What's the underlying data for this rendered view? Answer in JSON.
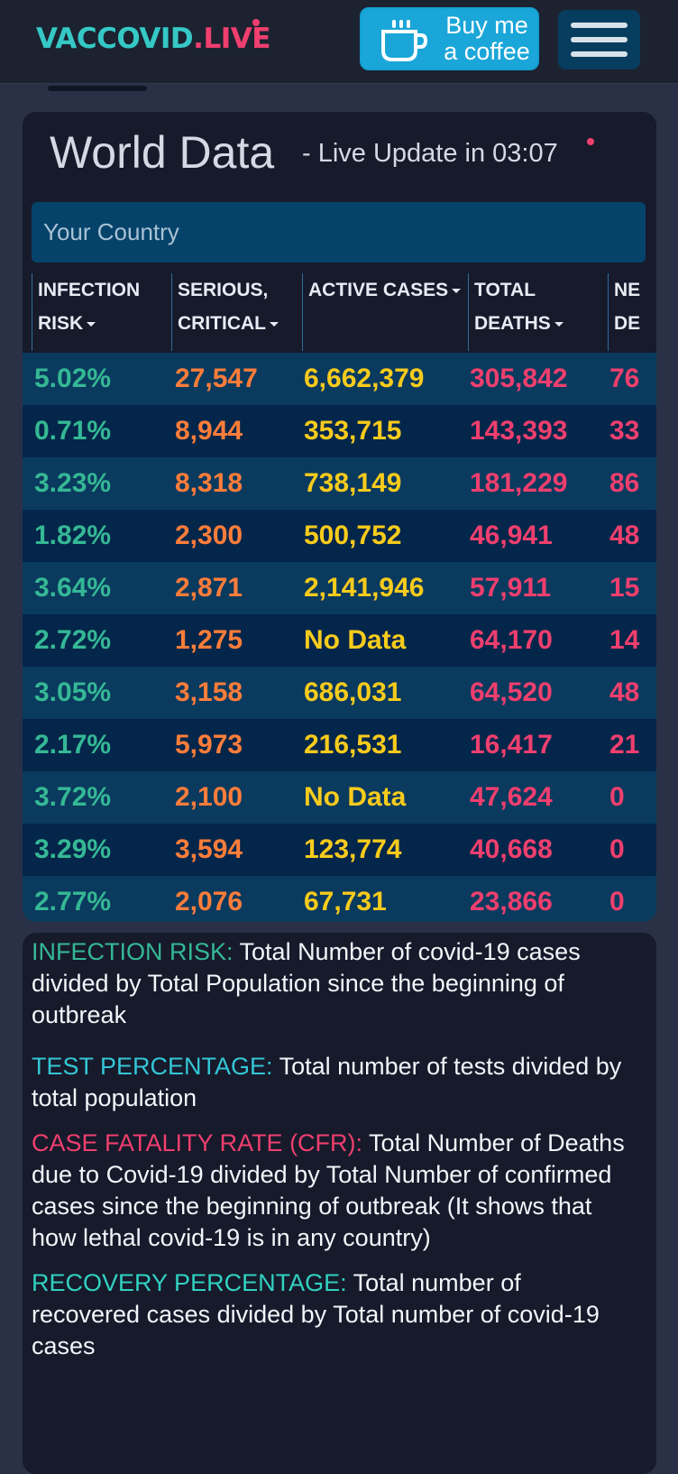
{
  "nav": {
    "logo_part1": "VACCOVID",
    "logo_part2": ".LIVE",
    "coffee_label_line1": "Buy me",
    "coffee_label_line2": "a coffee"
  },
  "panel": {
    "title": "World Data",
    "subtitle": "- Live Update in 03:07",
    "search_placeholder": "Your Country"
  },
  "table": {
    "headers": [
      {
        "line1": "INFECTION",
        "line2": "RISK"
      },
      {
        "line1": "SERIOUS,",
        "line2": "CRITICAL"
      },
      {
        "line1": "ACTIVE CASES",
        "line2": ""
      },
      {
        "line1": "TOTAL",
        "line2": "DEATHS"
      },
      {
        "line1": "NE",
        "line2": "DE"
      }
    ],
    "rows": [
      {
        "risk": "5.02%",
        "critical": "27,547",
        "active": "6,662,379",
        "deaths": "305,842",
        "new": "76"
      },
      {
        "risk": "0.71%",
        "critical": "8,944",
        "active": "353,715",
        "deaths": "143,393",
        "new": "33"
      },
      {
        "risk": "3.23%",
        "critical": "8,318",
        "active": "738,149",
        "deaths": "181,229",
        "new": "86"
      },
      {
        "risk": "1.82%",
        "critical": "2,300",
        "active": "500,752",
        "deaths": "46,941",
        "new": "48"
      },
      {
        "risk": "3.64%",
        "critical": "2,871",
        "active": "2,141,946",
        "deaths": "57,911",
        "new": "15"
      },
      {
        "risk": "2.72%",
        "critical": "1,275",
        "active": "No Data",
        "deaths": "64,170",
        "new": "14"
      },
      {
        "risk": "3.05%",
        "critical": "3,158",
        "active": "686,031",
        "deaths": "64,520",
        "new": "48"
      },
      {
        "risk": "2.17%",
        "critical": "5,973",
        "active": "216,531",
        "deaths": "16,417",
        "new": "21"
      },
      {
        "risk": "3.72%",
        "critical": "2,100",
        "active": "No Data",
        "deaths": "47,624",
        "new": "0"
      },
      {
        "risk": "3.29%",
        "critical": "3,594",
        "active": "123,774",
        "deaths": "40,668",
        "new": "0"
      },
      {
        "risk": "2.77%",
        "critical": "2,076",
        "active": "67,731",
        "deaths": "23,866",
        "new": "0"
      }
    ]
  },
  "definitions": [
    {
      "term": "INFECTION RISK:",
      "text": " Total Number of covid-19 cases divided by Total Population since the beginning of outbreak"
    },
    {
      "term": "TEST PERCENTAGE:",
      "text": " Total number of tests divided by total population"
    },
    {
      "term": "CASE FATALITY RATE (CFR):",
      "text": " Total Number of Deaths due to Covid-19 divided by Total Number of confirmed cases since the beginning of outbreak (It shows that how lethal covid-19 is in any country)"
    },
    {
      "term": "RECOVERY PERCENTAGE:",
      "text": " Total number of recovered cases divided by Total number of covid-19 cases"
    }
  ],
  "colors": {
    "accent_teal": "#35c8c6",
    "accent_pink": "#ef3f6e",
    "risk_green": "#35b895",
    "critical_orange": "#ff7d3a",
    "active_yellow": "#f8cb1c"
  }
}
